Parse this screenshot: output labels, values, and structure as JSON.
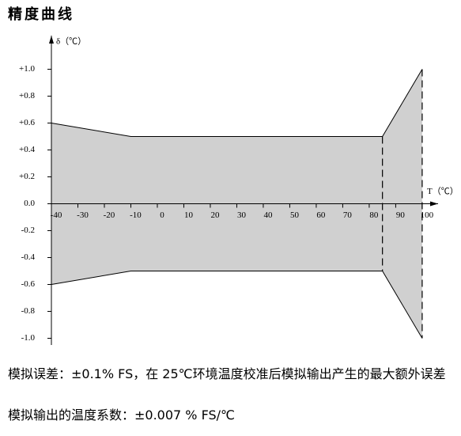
{
  "chart_data": {
    "type": "area-band",
    "title": "精度曲线",
    "xlabel": "T（℃）",
    "ylabel": "δ（℃）",
    "xlim": [
      -40,
      106
    ],
    "ylim": [
      -1.05,
      1.25
    ],
    "xticks": [
      -40,
      -30,
      -20,
      -10,
      0,
      10,
      20,
      30,
      40,
      50,
      60,
      70,
      80,
      90,
      100
    ],
    "yticks": [
      {
        "value": 1.0,
        "label": "+1.0"
      },
      {
        "value": 0.8,
        "label": "+0.8"
      },
      {
        "value": 0.6,
        "label": "+0.6"
      },
      {
        "value": 0.4,
        "label": "+0.4"
      },
      {
        "value": 0.2,
        "label": "+0.2"
      },
      {
        "value": 0,
        "label": "0.0"
      },
      {
        "value": -0.2,
        "label": "-0.2"
      },
      {
        "value": -0.4,
        "label": "-0.4"
      },
      {
        "value": -0.6,
        "label": "-0.6"
      },
      {
        "value": -0.8,
        "label": "-0.8"
      },
      {
        "value": -1.0,
        "label": "-1.0"
      }
    ],
    "fill_color": "#d0d0d0",
    "series": [
      {
        "name": "upper",
        "x": [
          -40,
          -10,
          85,
          100
        ],
        "values": [
          0.6,
          0.5,
          0.5,
          1.0
        ]
      },
      {
        "name": "lower",
        "x": [
          -40,
          -10,
          85,
          100
        ],
        "values": [
          -0.6,
          -0.5,
          -0.5,
          -1.0
        ]
      }
    ]
  },
  "notes": [
    "模拟误差：±0.1% FS，在 25℃环境温度校准后模拟输出产生的最大额外误差",
    "模拟输出的温度系数：±0.007 % FS/℃"
  ]
}
